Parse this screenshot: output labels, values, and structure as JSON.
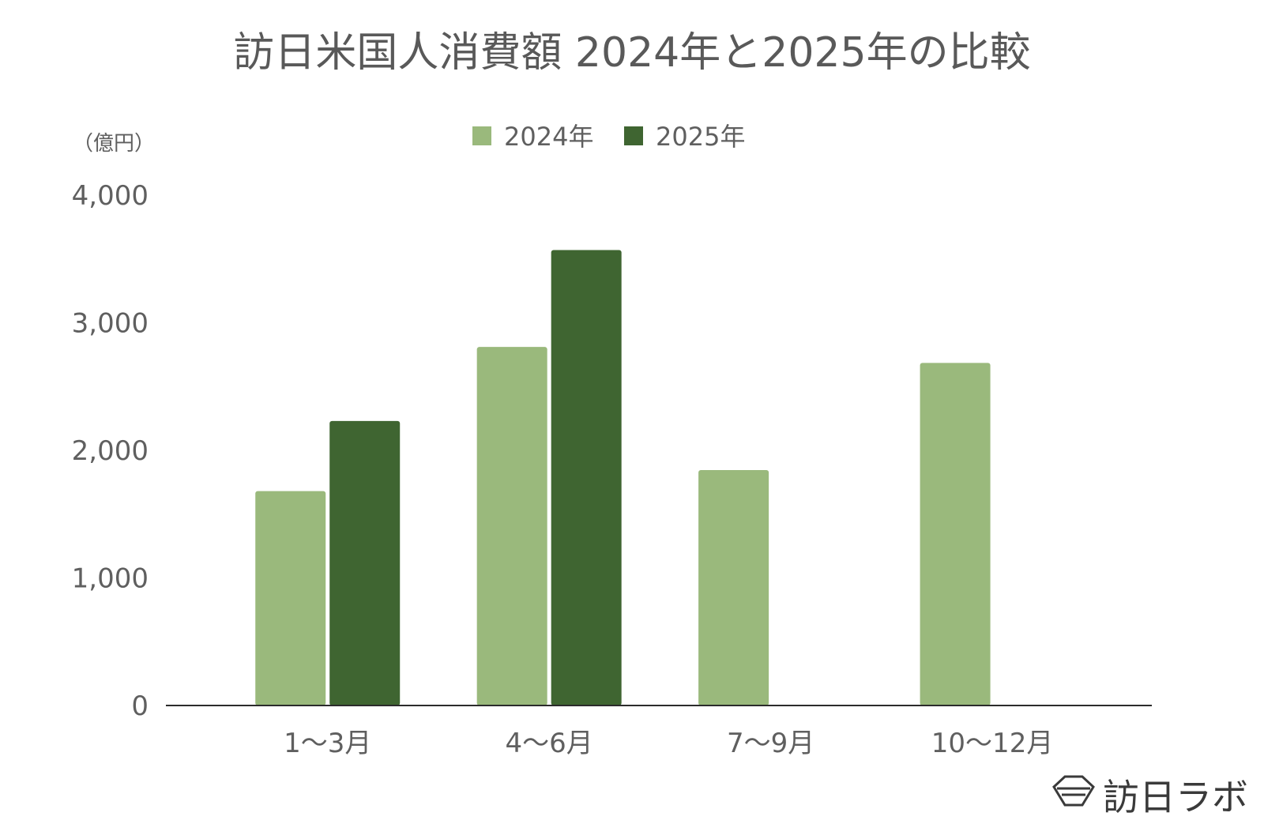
{
  "chart_data": {
    "type": "bar",
    "title": "訪日米国人消費額 2024年と2025年の比較",
    "unit_label": "（億円）",
    "categories": [
      "1〜3月",
      "4〜6月",
      "7〜9月",
      "10〜12月"
    ],
    "series": [
      {
        "name": "2024年",
        "color": "#9ab97c",
        "values": [
          1680,
          2810,
          1845,
          2685
        ]
      },
      {
        "name": "2025年",
        "color": "#3f6531",
        "values": [
          2230,
          3570,
          null,
          null
        ]
      }
    ],
    "ylim": [
      0,
      4000
    ],
    "yticks": [
      0,
      1000,
      2000,
      3000,
      4000
    ],
    "ytick_labels": [
      "0",
      "1,000",
      "2,000",
      "3,000",
      "4,000"
    ],
    "grid": false,
    "legend_position": "top-center"
  },
  "brand": {
    "name": "訪日ラボ",
    "icon": "hexagon-logo-icon"
  }
}
